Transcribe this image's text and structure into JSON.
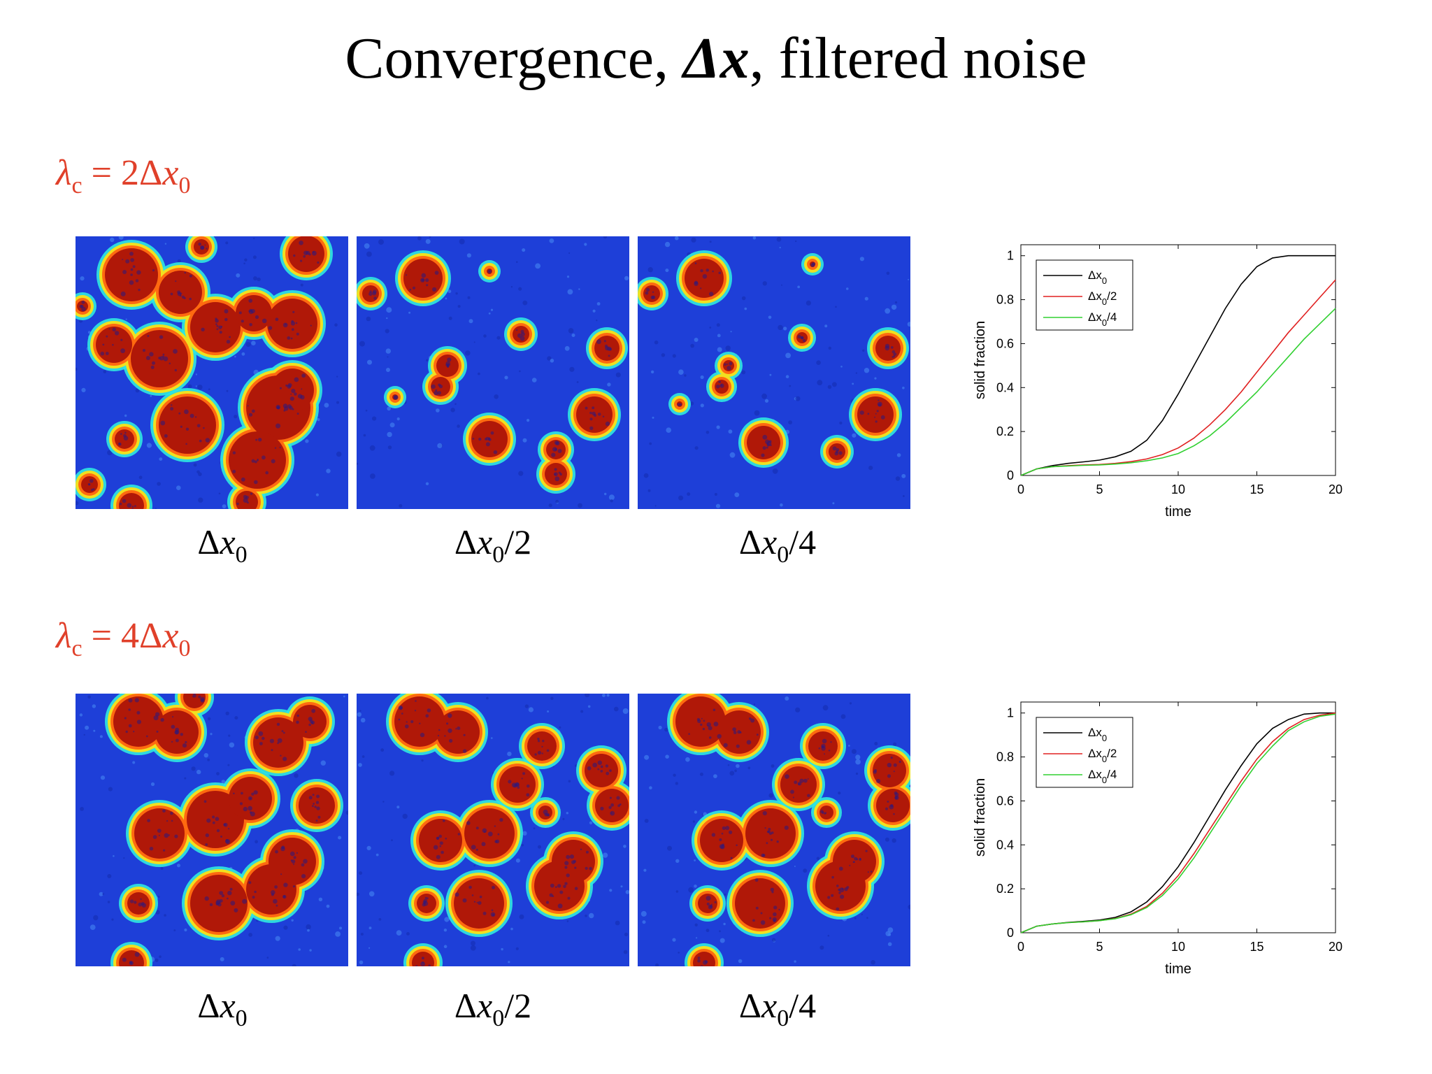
{
  "slide": {
    "title_main": "Convergence, ",
    "title_delta": "Δx",
    "title_rest": ", filtered noise"
  },
  "rows": [
    {
      "lambda_sym": "λ",
      "lambda_sub": "c",
      "lambda_eq": " = 2Δ",
      "lambda_x": "x",
      "lambda_x_sub": "0",
      "captions": [
        {
          "pre": "Δ",
          "x": "x",
          "sub": "0",
          "post": ""
        },
        {
          "pre": "Δ",
          "x": "x",
          "sub": "0",
          "post": "/2"
        },
        {
          "pre": "Δ",
          "x": "x",
          "sub": "0",
          "post": "/4"
        }
      ]
    },
    {
      "lambda_sym": "λ",
      "lambda_sub": "c",
      "lambda_eq": " = 4Δ",
      "lambda_x": "x",
      "lambda_x_sub": "0",
      "captions": [
        {
          "pre": "Δ",
          "x": "x",
          "sub": "0",
          "post": ""
        },
        {
          "pre": "Δ",
          "x": "x",
          "sub": "0",
          "post": "/2"
        },
        {
          "pre": "Δ",
          "x": "x",
          "sub": "0",
          "post": "/4"
        }
      ]
    }
  ],
  "colors": {
    "background_field": "#1e3fd8",
    "solid_core": "#b01808",
    "solid_edge": "#ff6a10",
    "halo": "#30e8e0",
    "lambda_text": "#e0402a",
    "series_black": "#000000",
    "series_red": "#e02020",
    "series_green": "#30d030"
  },
  "chart_data": [
    {
      "type": "line",
      "title": "",
      "xlabel": "time",
      "ylabel": "solid fraction",
      "xlim": [
        0,
        20
      ],
      "ylim": [
        0,
        1.05
      ],
      "xticks": [
        0,
        5,
        10,
        15,
        20
      ],
      "yticks": [
        0,
        0.2,
        0.4,
        0.6,
        0.8,
        1
      ],
      "ytick_labels": [
        "0",
        "0.2",
        "0.4",
        "0.6",
        "0.8",
        "1"
      ],
      "grid": false,
      "legend_position": "top-left",
      "legend": [
        {
          "main": "Δx",
          "sub": "0",
          "post": "",
          "color": "#000000"
        },
        {
          "main": "Δx",
          "sub": "0",
          "post": "/2",
          "color": "#e02020"
        },
        {
          "main": "Δx",
          "sub": "0",
          "post": "/4",
          "color": "#30d030"
        }
      ],
      "series": [
        {
          "color": "#000000",
          "x": [
            0,
            1,
            2,
            3,
            4,
            5,
            6,
            7,
            8,
            9,
            10,
            11,
            12,
            13,
            14,
            15,
            16,
            17,
            18,
            19,
            20
          ],
          "y": [
            0,
            0.03,
            0.045,
            0.055,
            0.062,
            0.07,
            0.085,
            0.11,
            0.16,
            0.25,
            0.37,
            0.5,
            0.63,
            0.76,
            0.87,
            0.95,
            0.99,
            1.0,
            1.0,
            1.0,
            1.0
          ]
        },
        {
          "color": "#e02020",
          "x": [
            0,
            1,
            2,
            3,
            4,
            5,
            6,
            7,
            8,
            9,
            10,
            11,
            12,
            13,
            14,
            15,
            16,
            17,
            18,
            19,
            20
          ],
          "y": [
            0,
            0.03,
            0.04,
            0.045,
            0.048,
            0.05,
            0.055,
            0.063,
            0.075,
            0.095,
            0.125,
            0.17,
            0.23,
            0.3,
            0.38,
            0.47,
            0.56,
            0.65,
            0.73,
            0.81,
            0.89
          ]
        },
        {
          "color": "#30d030",
          "x": [
            0,
            1,
            2,
            3,
            4,
            5,
            6,
            7,
            8,
            9,
            10,
            11,
            12,
            13,
            14,
            15,
            16,
            17,
            18,
            19,
            20
          ],
          "y": [
            0,
            0.03,
            0.04,
            0.043,
            0.046,
            0.048,
            0.052,
            0.058,
            0.067,
            0.08,
            0.1,
            0.135,
            0.18,
            0.24,
            0.31,
            0.38,
            0.46,
            0.54,
            0.62,
            0.69,
            0.76
          ]
        }
      ]
    },
    {
      "type": "line",
      "title": "",
      "xlabel": "time",
      "ylabel": "solid fraction",
      "xlim": [
        0,
        20
      ],
      "ylim": [
        0,
        1.05
      ],
      "xticks": [
        0,
        5,
        10,
        15,
        20
      ],
      "yticks": [
        0,
        0.2,
        0.4,
        0.6,
        0.8,
        1
      ],
      "ytick_labels": [
        "0",
        "0.2",
        "0.4",
        "0.6",
        "0.8",
        "1"
      ],
      "grid": false,
      "legend_position": "top-left",
      "legend": [
        {
          "main": "Δx",
          "sub": "0",
          "post": "",
          "color": "#000000"
        },
        {
          "main": "Δx",
          "sub": "0",
          "post": "/2",
          "color": "#e02020"
        },
        {
          "main": "Δx",
          "sub": "0",
          "post": "/4",
          "color": "#30d030"
        }
      ],
      "series": [
        {
          "color": "#000000",
          "x": [
            0,
            1,
            2,
            3,
            4,
            5,
            6,
            7,
            8,
            9,
            10,
            11,
            12,
            13,
            14,
            15,
            16,
            17,
            18,
            19,
            20
          ],
          "y": [
            0,
            0.03,
            0.04,
            0.047,
            0.052,
            0.058,
            0.07,
            0.095,
            0.14,
            0.21,
            0.3,
            0.41,
            0.53,
            0.65,
            0.76,
            0.86,
            0.93,
            0.97,
            0.995,
            1.0,
            1.0
          ]
        },
        {
          "color": "#e02020",
          "x": [
            0,
            1,
            2,
            3,
            4,
            5,
            6,
            7,
            8,
            9,
            10,
            11,
            12,
            13,
            14,
            15,
            16,
            17,
            18,
            19,
            20
          ],
          "y": [
            0,
            0.03,
            0.04,
            0.046,
            0.05,
            0.055,
            0.065,
            0.085,
            0.12,
            0.18,
            0.26,
            0.36,
            0.47,
            0.58,
            0.69,
            0.79,
            0.87,
            0.93,
            0.97,
            0.99,
            1.0
          ]
        },
        {
          "color": "#30d030",
          "x": [
            0,
            1,
            2,
            3,
            4,
            5,
            6,
            7,
            8,
            9,
            10,
            11,
            12,
            13,
            14,
            15,
            16,
            17,
            18,
            19,
            20
          ],
          "y": [
            0,
            0.03,
            0.04,
            0.046,
            0.05,
            0.055,
            0.064,
            0.082,
            0.115,
            0.17,
            0.245,
            0.34,
            0.45,
            0.56,
            0.67,
            0.77,
            0.85,
            0.92,
            0.96,
            0.985,
            0.995
          ]
        }
      ]
    }
  ]
}
